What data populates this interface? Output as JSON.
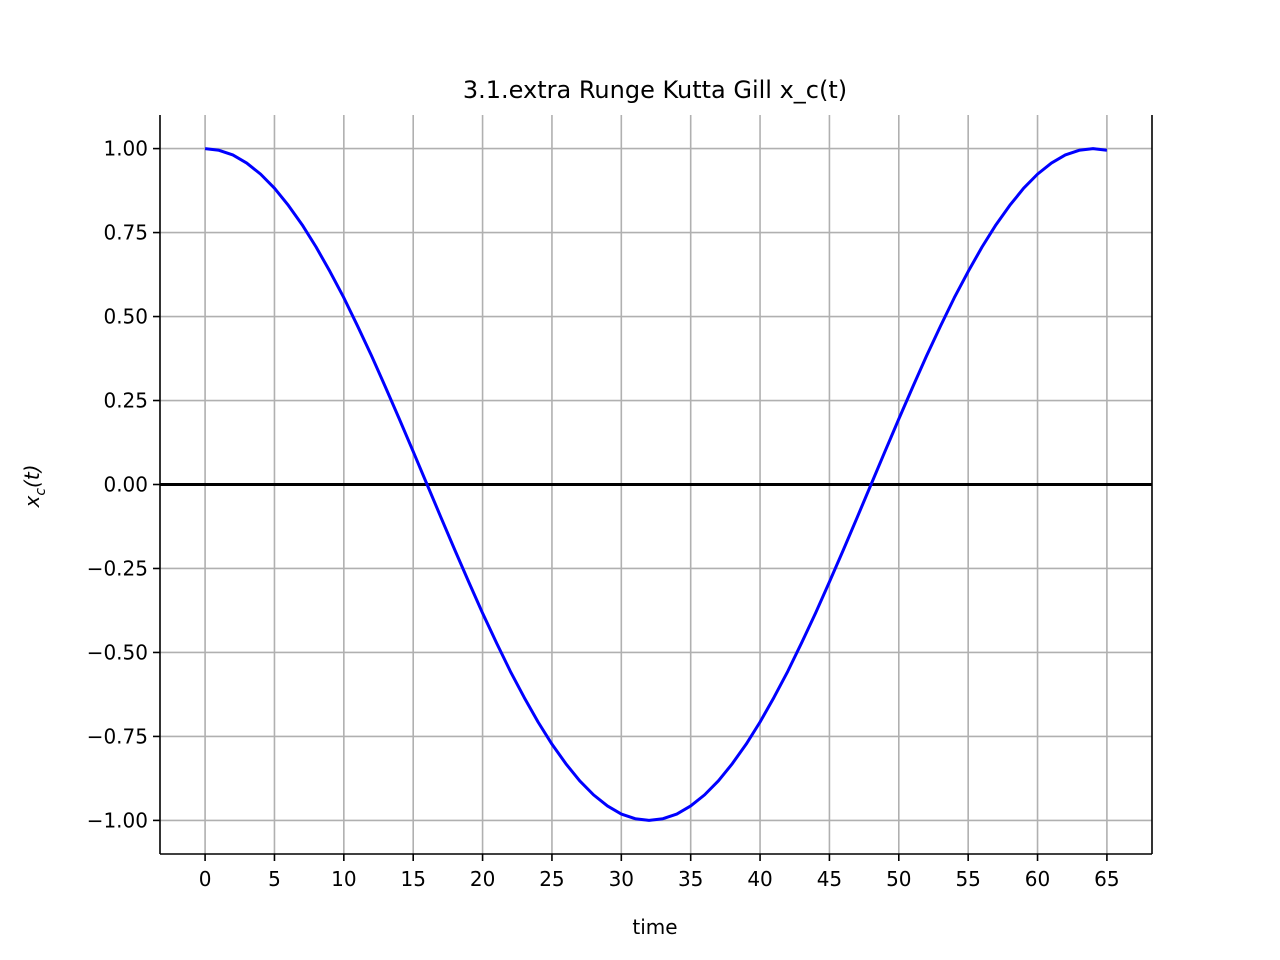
{
  "chart_data": {
    "type": "line",
    "title": "3.1.extra Runge Kutta Gill x_c(t)",
    "xlabel": "time",
    "ylabel": {
      "base": "x",
      "subscript": "c",
      "suffix": "(t)"
    },
    "xlim": [
      -3.25,
      68.25
    ],
    "ylim": [
      -1.1,
      1.1
    ],
    "xticks": [
      0,
      5,
      10,
      15,
      20,
      25,
      30,
      35,
      40,
      45,
      50,
      55,
      60,
      65
    ],
    "yticks": [
      1.0,
      0.75,
      0.5,
      0.25,
      0.0,
      -0.25,
      -0.5,
      -0.75,
      -1.0
    ],
    "ytick_labels": [
      "1.00",
      "0.75",
      "0.50",
      "0.25",
      "0.00",
      "−0.25",
      "−0.50",
      "−0.75",
      "−1.00"
    ],
    "grid": true,
    "reference_line": {
      "y": 0,
      "color": "#000000"
    },
    "series": [
      {
        "color": "#0000ff",
        "x": [
          0,
          1,
          2,
          3,
          4,
          5,
          6,
          7,
          8,
          9,
          10,
          11,
          12,
          13,
          14,
          15,
          16,
          17,
          18,
          19,
          20,
          21,
          22,
          23,
          24,
          25,
          26,
          27,
          28,
          29,
          30,
          31,
          32,
          33,
          34,
          35,
          36,
          37,
          38,
          39,
          40,
          41,
          42,
          43,
          44,
          45,
          46,
          47,
          48,
          49,
          50,
          51,
          52,
          53,
          54,
          55,
          56,
          57,
          58,
          59,
          60,
          61,
          62,
          63,
          64,
          65
        ],
        "y": [
          1.0,
          0.995,
          0.981,
          0.957,
          0.924,
          0.882,
          0.831,
          0.773,
          0.707,
          0.634,
          0.556,
          0.471,
          0.383,
          0.29,
          0.195,
          0.098,
          0.0,
          -0.098,
          -0.195,
          -0.29,
          -0.383,
          -0.471,
          -0.556,
          -0.634,
          -0.707,
          -0.773,
          -0.831,
          -0.882,
          -0.924,
          -0.957,
          -0.981,
          -0.995,
          -1.0,
          -0.995,
          -0.981,
          -0.957,
          -0.924,
          -0.882,
          -0.831,
          -0.773,
          -0.707,
          -0.634,
          -0.556,
          -0.471,
          -0.383,
          -0.29,
          -0.195,
          -0.098,
          0.0,
          0.098,
          0.195,
          0.29,
          0.383,
          0.471,
          0.556,
          0.634,
          0.707,
          0.773,
          0.831,
          0.882,
          0.924,
          0.957,
          0.981,
          0.995,
          1.0,
          0.995
        ]
      }
    ]
  },
  "colors": {
    "grid": "#b0b0b0",
    "axis": "#000000",
    "line": "#0000ff"
  }
}
